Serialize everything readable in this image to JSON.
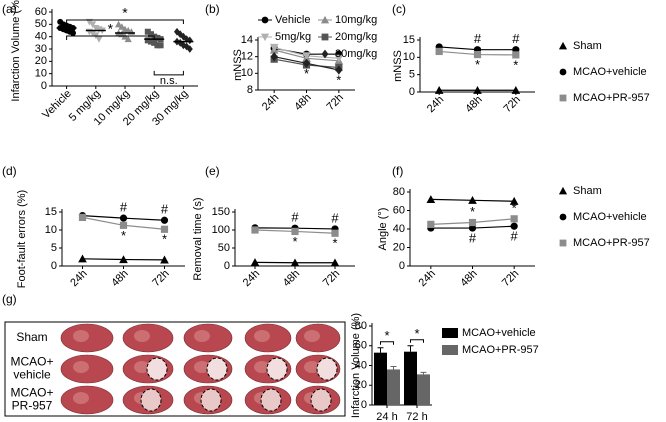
{
  "chart_data": [
    {
      "type": "dot",
      "label": "(a)",
      "ylabel": "Infarction Volume (%)",
      "categories": [
        "Vehicle",
        "5 mg/kg",
        "10 mg/kg",
        "20 mg/kg",
        "30 mg/kg"
      ],
      "colors": [
        "#000000",
        "#b0b0b0",
        "#8c8c8c",
        "#555555",
        "#222222"
      ],
      "markers": [
        "circle",
        "triangle-down",
        "triangle",
        "square",
        "diamond"
      ],
      "points": [
        [
          52,
          50,
          49,
          48,
          47,
          47,
          46,
          45,
          44,
          43
        ],
        [
          52,
          50,
          47,
          46,
          45,
          44,
          43,
          41,
          38
        ],
        [
          50,
          48,
          46,
          45,
          44,
          43,
          42,
          40,
          38
        ],
        [
          44,
          42,
          40,
          39,
          38,
          37,
          36,
          35,
          33,
          33
        ],
        [
          44,
          42,
          40,
          38,
          37,
          36,
          35,
          33,
          32,
          30
        ]
      ],
      "means": [
        47,
        45,
        43,
        38,
        36
      ],
      "comparisons": [
        {
          "between": [
            "Vehicle",
            "30 mg/kg"
          ],
          "text": "*"
        },
        {
          "between": [
            "Vehicle",
            "20 mg/kg"
          ],
          "text": "*"
        },
        {
          "between": [
            "20 mg/kg",
            "30 mg/kg"
          ],
          "text": "n.s."
        }
      ],
      "ylim": [
        0,
        60
      ],
      "yticks": [
        0,
        10,
        20,
        30,
        40,
        50,
        60
      ]
    },
    {
      "type": "line",
      "label": "(b)",
      "ylabel": "mNSS",
      "categories": [
        "24h",
        "48h",
        "72h"
      ],
      "series": [
        {
          "name": "Vehicle",
          "color": "#000000",
          "marker": "circle",
          "values": [
            13.0,
            12.3,
            12.3
          ]
        },
        {
          "name": "10mg/kg",
          "color": "#8c8c8c",
          "marker": "triangle",
          "values": [
            12.8,
            11.8,
            11.5
          ]
        },
        {
          "name": "5mg/kg",
          "color": "#b0b0b0",
          "marker": "triangle-down",
          "values": [
            13.1,
            12.1,
            11.8
          ]
        },
        {
          "name": "20mg/kg",
          "color": "#555555",
          "marker": "square",
          "values": [
            11.7,
            11.0,
            10.7
          ]
        },
        {
          "name": "30mg/kg",
          "color": "#222222",
          "marker": "diamond",
          "values": [
            12.0,
            11.2,
            10.4
          ],
          "flags": [
            null,
            "*",
            "*"
          ],
          "flag_side": "below"
        }
      ],
      "ylim": [
        8,
        14
      ],
      "yticks": [
        8,
        10,
        12,
        14
      ]
    },
    {
      "type": "line",
      "label": "(c)",
      "ylabel": "mNSS",
      "categories": [
        "24h",
        "48h",
        "72h"
      ],
      "series": [
        {
          "name": "Sham",
          "color": "#000000",
          "marker": "triangle",
          "values": [
            0.5,
            0.5,
            0.5
          ]
        },
        {
          "name": "MCAO+vehicle",
          "color": "#000000",
          "marker": "circle",
          "values": [
            13.0,
            12.2,
            12.2
          ],
          "flags": [
            null,
            "#",
            "#"
          ],
          "flag_side": "above"
        },
        {
          "name": "MCAO+PR-957",
          "color": "#8c8c8c",
          "marker": "square",
          "values": [
            11.7,
            10.8,
            10.7
          ],
          "flags": [
            null,
            "*",
            "*"
          ],
          "flag_side": "below"
        }
      ],
      "ylim": [
        0,
        15
      ],
      "yticks": [
        0,
        5,
        10,
        15
      ]
    },
    {
      "type": "line",
      "label": "(d)",
      "ylabel": "Foot-fault errors (%)",
      "categories": [
        "24h",
        "48h",
        "72h"
      ],
      "series": [
        {
          "color": "#000000",
          "marker": "triangle",
          "values": [
            2.0,
            1.8,
            1.7
          ]
        },
        {
          "color": "#000000",
          "marker": "circle",
          "values": [
            14.0,
            13.3,
            12.7
          ],
          "flags": [
            null,
            "#",
            "#"
          ],
          "flag_side": "above"
        },
        {
          "color": "#8c8c8c",
          "marker": "square",
          "values": [
            13.5,
            11.3,
            10.2
          ],
          "flags": [
            null,
            "*",
            "*"
          ],
          "flag_side": "below"
        }
      ],
      "ylim": [
        0,
        15
      ],
      "yticks": [
        0,
        5,
        10,
        15
      ]
    },
    {
      "type": "line",
      "label": "(e)",
      "ylabel": "Removal time (s)",
      "categories": [
        "24h",
        "48h",
        "72h"
      ],
      "series": [
        {
          "color": "#000000",
          "marker": "triangle",
          "values": [
            10,
            9,
            9
          ]
        },
        {
          "color": "#000000",
          "marker": "circle",
          "values": [
            106,
            105,
            103
          ],
          "flags": [
            null,
            "#",
            "#"
          ],
          "flag_side": "above"
        },
        {
          "color": "#8c8c8c",
          "marker": "square",
          "values": [
            100,
            96,
            91
          ],
          "flags": [
            null,
            "*",
            "*"
          ],
          "flag_side": "below"
        }
      ],
      "ylim": [
        0,
        150
      ],
      "yticks": [
        0,
        50,
        100,
        150
      ]
    },
    {
      "type": "line",
      "label": "(f)",
      "ylabel": "Angle (°)",
      "categories": [
        "24h",
        "48h",
        "72h"
      ],
      "series": [
        {
          "name": "Sham",
          "color": "#000000",
          "marker": "triangle",
          "values": [
            72,
            71,
            70
          ]
        },
        {
          "name": "MCAO+vehicle",
          "color": "#000000",
          "marker": "circle",
          "values": [
            41,
            41,
            43
          ],
          "flags": [
            null,
            "#",
            "#"
          ],
          "flag_side": "below"
        },
        {
          "name": "MCAO+PR-957",
          "color": "#8c8c8c",
          "marker": "square",
          "values": [
            45,
            47,
            51
          ],
          "flags": [
            null,
            "*",
            "*"
          ],
          "flag_side": "above"
        }
      ],
      "ylim": [
        0,
        80
      ],
      "yticks": [
        0,
        20,
        40,
        60,
        80
      ]
    },
    {
      "type": "bar",
      "label": "(g)",
      "ylabel": "Infarction Volume (%)",
      "categories": [
        "24 h",
        "72 h"
      ],
      "image_rows": [
        [
          "Sham"
        ],
        [
          "MCAO+",
          "vehicle"
        ],
        [
          "MCAO+",
          "PR-957"
        ]
      ],
      "series": [
        {
          "name": "MCAO+vehicle",
          "color": "#000000",
          "values": [
            53,
            54
          ],
          "errors": [
            5,
            6
          ]
        },
        {
          "name": "MCAO+PR-957",
          "color": "#666666",
          "values": [
            36,
            31
          ],
          "errors": [
            3,
            2
          ]
        }
      ],
      "significance": [
        "*",
        "*"
      ],
      "ylim": [
        0,
        80
      ],
      "yticks": [
        0,
        20,
        40,
        60,
        80
      ]
    }
  ]
}
